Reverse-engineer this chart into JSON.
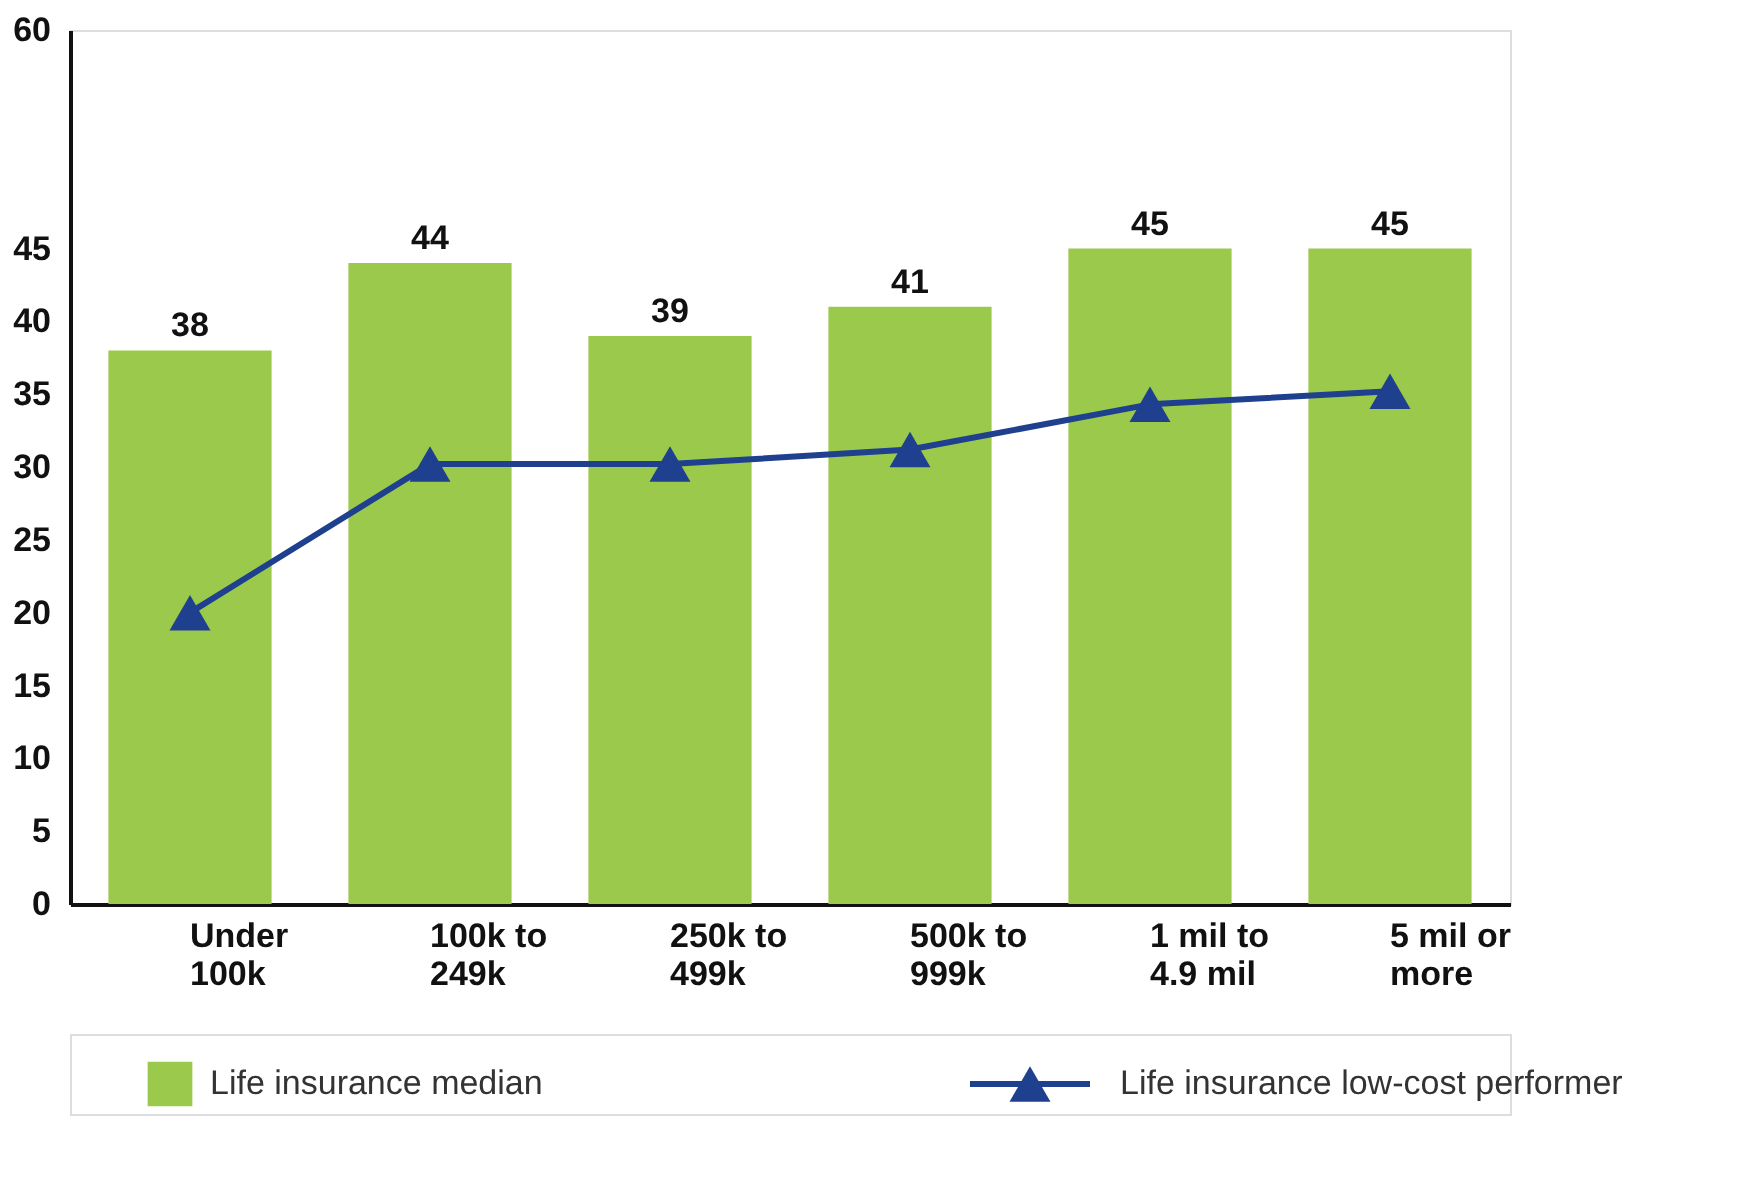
{
  "chart_data": {
    "type": "bar",
    "categories": [
      "Under\n100k",
      "100k to\n249k",
      "250k to\n499k",
      "500k to\n999k",
      "1 mil to\n4.9 mil",
      "5 mil or\nmore"
    ],
    "series": [
      {
        "name": "Life insurance median",
        "color": "#9bc94b",
        "values": [
          38,
          44,
          39,
          41,
          45,
          45
        ],
        "data_labels": true
      },
      {
        "name": "Life insurance low-cost performer",
        "type": "line",
        "color": "#1f3f8f",
        "marker": "triangle",
        "values": [
          20,
          30.2,
          30.2,
          31.2,
          34.3,
          35.2
        ]
      }
    ],
    "ylim": [
      0,
      60
    ],
    "yticks": [
      0,
      5,
      10,
      15,
      20,
      25,
      30,
      35,
      40,
      45,
      60
    ],
    "grid": false,
    "legend": "bottom"
  }
}
